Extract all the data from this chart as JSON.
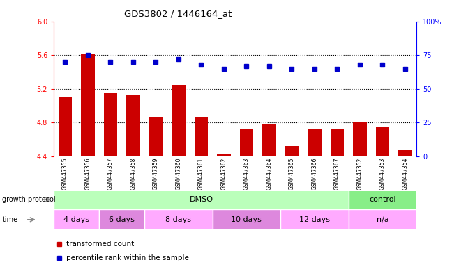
{
  "title": "GDS3802 / 1446164_at",
  "samples": [
    "GSM447355",
    "GSM447356",
    "GSM447357",
    "GSM447358",
    "GSM447359",
    "GSM447360",
    "GSM447361",
    "GSM447362",
    "GSM447363",
    "GSM447364",
    "GSM447365",
    "GSM447366",
    "GSM447367",
    "GSM447352",
    "GSM447353",
    "GSM447354"
  ],
  "bar_values": [
    5.1,
    5.61,
    5.15,
    5.13,
    4.87,
    5.25,
    4.87,
    4.43,
    4.73,
    4.78,
    4.52,
    4.73,
    4.73,
    4.8,
    4.75,
    4.47
  ],
  "dot_values": [
    70,
    75,
    70,
    70,
    70,
    72,
    68,
    65,
    67,
    67,
    65,
    65,
    65,
    68,
    68,
    65
  ],
  "bar_color": "#cc0000",
  "dot_color": "#0000cc",
  "ylim_left": [
    4.4,
    6.0
  ],
  "ylim_right": [
    0,
    100
  ],
  "yticks_left": [
    4.4,
    4.8,
    5.2,
    5.6,
    6.0
  ],
  "yticks_right": [
    0,
    25,
    50,
    75,
    100
  ],
  "grid_values": [
    4.8,
    5.2,
    5.6
  ],
  "background_color": "#ffffff",
  "plot_bg_color": "#ffffff",
  "growth_protocol_label": "growth protocol",
  "time_label": "time",
  "group_protocol": [
    {
      "label": "DMSO",
      "start": 0,
      "end": 13,
      "color": "#bbffbb"
    },
    {
      "label": "control",
      "start": 13,
      "end": 16,
      "color": "#88ee88"
    }
  ],
  "group_time": [
    {
      "label": "4 days",
      "start": 0,
      "end": 2,
      "color": "#ffaaff"
    },
    {
      "label": "6 days",
      "start": 2,
      "end": 4,
      "color": "#dd88dd"
    },
    {
      "label": "8 days",
      "start": 4,
      "end": 7,
      "color": "#ffaaff"
    },
    {
      "label": "10 days",
      "start": 7,
      "end": 10,
      "color": "#dd88dd"
    },
    {
      "label": "12 days",
      "start": 10,
      "end": 13,
      "color": "#ffaaff"
    },
    {
      "label": "n/a",
      "start": 13,
      "end": 16,
      "color": "#ffaaff"
    }
  ],
  "legend_items": [
    {
      "label": "transformed count",
      "color": "#cc0000"
    },
    {
      "label": "percentile rank within the sample",
      "color": "#0000cc"
    }
  ],
  "sample_bg_color": "#cccccc",
  "sample_sep_color": "#ffffff"
}
